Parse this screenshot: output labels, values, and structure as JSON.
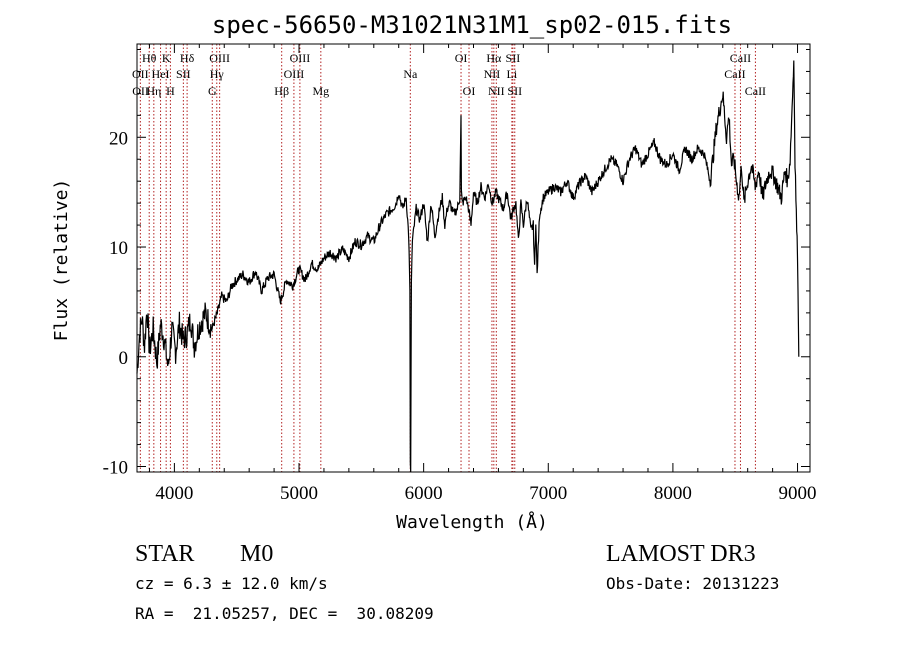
{
  "chart_data": {
    "type": "line",
    "title": "spec-56650-M31021N31M1_sp02-015.fits",
    "xlabel": "Wavelength (Å)",
    "ylabel": "Flux (relative)",
    "xlim": [
      3700,
      9100
    ],
    "ylim": [
      -10.5,
      28.5
    ],
    "x_ticks": [
      4000,
      5000,
      6000,
      7000,
      8000,
      9000
    ],
    "y_ticks": [
      -10,
      0,
      10,
      20
    ],
    "spectrum": {
      "name": "flux",
      "x": [
        3700,
        3720,
        3740,
        3760,
        3780,
        3800,
        3830,
        3860,
        3890,
        3920,
        3950,
        3980,
        4010,
        4040,
        4070,
        4100,
        4130,
        4160,
        4200,
        4250,
        4300,
        4340,
        4380,
        4420,
        4460,
        4500,
        4550,
        4600,
        4650,
        4700,
        4750,
        4800,
        4850,
        4900,
        4950,
        5000,
        5050,
        5100,
        5150,
        5200,
        5250,
        5300,
        5350,
        5400,
        5450,
        5500,
        5550,
        5600,
        5650,
        5700,
        5750,
        5780,
        5800,
        5830,
        5860,
        5880,
        5890,
        5893,
        5896,
        5899,
        5902,
        5910,
        5940,
        5970,
        6000,
        6030,
        6060,
        6090,
        6120,
        6150,
        6170,
        6190,
        6210,
        6240,
        6270,
        6290,
        6297,
        6300,
        6303,
        6310,
        6340,
        6360,
        6380,
        6400,
        6430,
        6460,
        6490,
        6520,
        6550,
        6580,
        6610,
        6640,
        6670,
        6700,
        6720,
        6740,
        6760,
        6780,
        6800,
        6830,
        6860,
        6880,
        6890,
        6900,
        6910,
        6930,
        6960,
        7000,
        7050,
        7100,
        7150,
        7200,
        7250,
        7300,
        7350,
        7400,
        7450,
        7500,
        7550,
        7600,
        7650,
        7700,
        7750,
        7800,
        7850,
        7900,
        7950,
        8000,
        8050,
        8100,
        8150,
        8200,
        8250,
        8300,
        8350,
        8400,
        8430,
        8450,
        8470,
        8490,
        8510,
        8530,
        8550,
        8570,
        8600,
        8630,
        8660,
        8690,
        8720,
        8750,
        8780,
        8810,
        8840,
        8870,
        8900,
        8920,
        8940,
        8960,
        8970,
        8980,
        8990,
        9000,
        9010
      ],
      "y": [
        -1.5,
        2.0,
        3.5,
        1.0,
        4.5,
        0.5,
        2.5,
        -0.5,
        3.0,
        1.5,
        -1.0,
        2.5,
        0.5,
        3.0,
        1.5,
        2.0,
        3.5,
        1.0,
        2.8,
        4.0,
        2.5,
        3.8,
        5.5,
        5.0,
        6.5,
        7.0,
        7.5,
        6.8,
        7.8,
        6.0,
        7.2,
        7.5,
        5.0,
        7.0,
        6.5,
        8.0,
        7.0,
        8.5,
        8.0,
        9.0,
        9.5,
        9.0,
        9.8,
        9.0,
        10.5,
        10.2,
        11.0,
        10.5,
        12.0,
        13.0,
        13.5,
        14.0,
        15.0,
        13.5,
        14.5,
        11.0,
        6.0,
        -10.0,
        -10.5,
        0.0,
        7.0,
        10.5,
        13.5,
        12.5,
        14.0,
        10.5,
        14.0,
        11.0,
        13.0,
        14.5,
        12.0,
        13.5,
        14.0,
        13.0,
        13.5,
        14.5,
        20.0,
        22.0,
        15.0,
        14.0,
        14.5,
        13.5,
        12.0,
        15.0,
        14.0,
        15.5,
        14.5,
        15.8,
        14.0,
        15.0,
        14.2,
        13.5,
        15.0,
        12.5,
        13.5,
        14.0,
        10.5,
        14.0,
        12.0,
        14.5,
        11.5,
        12.0,
        8.0,
        12.5,
        7.5,
        13.0,
        14.5,
        15.0,
        15.5,
        15.0,
        16.0,
        14.5,
        15.8,
        16.5,
        15.0,
        16.0,
        17.0,
        18.0,
        17.5,
        16.0,
        18.0,
        19.0,
        17.5,
        18.5,
        19.5,
        18.0,
        17.5,
        18.5,
        17.0,
        19.0,
        18.0,
        19.0,
        18.5,
        16.0,
        21.0,
        24.0,
        20.0,
        22.0,
        17.5,
        18.0,
        16.0,
        14.5,
        17.5,
        14.0,
        16.0,
        17.5,
        15.5,
        17.0,
        14.5,
        16.0,
        17.0,
        16.5,
        15.5,
        14.5,
        17.0,
        16.0,
        18.0,
        24.0,
        27.0,
        18.0,
        13.0,
        9.0,
        0.0
      ],
      "color": "#000000"
    },
    "annotations": [
      {
        "label": "Hθ",
        "x": 3798,
        "row": 1
      },
      {
        "label": "OII",
        "x": 3727,
        "row": 2
      },
      {
        "label": "OII",
        "x": 3729,
        "row": 3
      },
      {
        "label": "K",
        "x": 3934,
        "row": 1
      },
      {
        "label": "HeI",
        "x": 3889,
        "row": 2
      },
      {
        "label": "Hη",
        "x": 3835,
        "row": 3
      },
      {
        "label": "Hδ",
        "x": 4102,
        "row": 1
      },
      {
        "label": "SII",
        "x": 4072,
        "row": 2
      },
      {
        "label": "H",
        "x": 3968,
        "row": 3
      },
      {
        "label": "OIII",
        "x": 4363,
        "row": 1
      },
      {
        "label": "Hγ",
        "x": 4340,
        "row": 2
      },
      {
        "label": "G",
        "x": 4304,
        "row": 3
      },
      {
        "label": "OIII",
        "x": 5007,
        "row": 1
      },
      {
        "label": "OIII",
        "x": 4959,
        "row": 2
      },
      {
        "label": "Hβ",
        "x": 4861,
        "row": 3
      },
      {
        "label": "Mg",
        "x": 5175,
        "row": 3
      },
      {
        "label": "Na",
        "x": 5893,
        "row": 2
      },
      {
        "label": "OI",
        "x": 6300,
        "row": 1
      },
      {
        "label": "OI",
        "x": 6364,
        "row": 3
      },
      {
        "label": "Hα",
        "x": 6563,
        "row": 1
      },
      {
        "label": "SII",
        "x": 6716,
        "row": 1
      },
      {
        "label": "NII",
        "x": 6548,
        "row": 2
      },
      {
        "label": "Li",
        "x": 6708,
        "row": 2
      },
      {
        "label": "NII",
        "x": 6583,
        "row": 3
      },
      {
        "label": "SII",
        "x": 6731,
        "row": 3
      },
      {
        "label": "CaII",
        "x": 8542,
        "row": 1
      },
      {
        "label": "CaII",
        "x": 8498,
        "row": 2
      },
      {
        "label": "CaII",
        "x": 8662,
        "row": 3
      }
    ],
    "line_markers": [
      3727,
      3798,
      3835,
      3889,
      3934,
      3968,
      4072,
      4102,
      4304,
      4340,
      4363,
      4861,
      4959,
      5007,
      5175,
      5893,
      6300,
      6364,
      6548,
      6563,
      6583,
      6708,
      6716,
      6731,
      8498,
      8542,
      8662
    ],
    "marker_color": "#b22222"
  },
  "info": {
    "object_class": "STAR",
    "subclass": "M0",
    "survey": "LAMOST DR3",
    "redshift_line": "cz = 6.3 ± 12.0 km/s",
    "obs_date_line": "Obs-Date: 20131223",
    "coords_line": "RA =  21.05257, DEC =  30.08209"
  }
}
